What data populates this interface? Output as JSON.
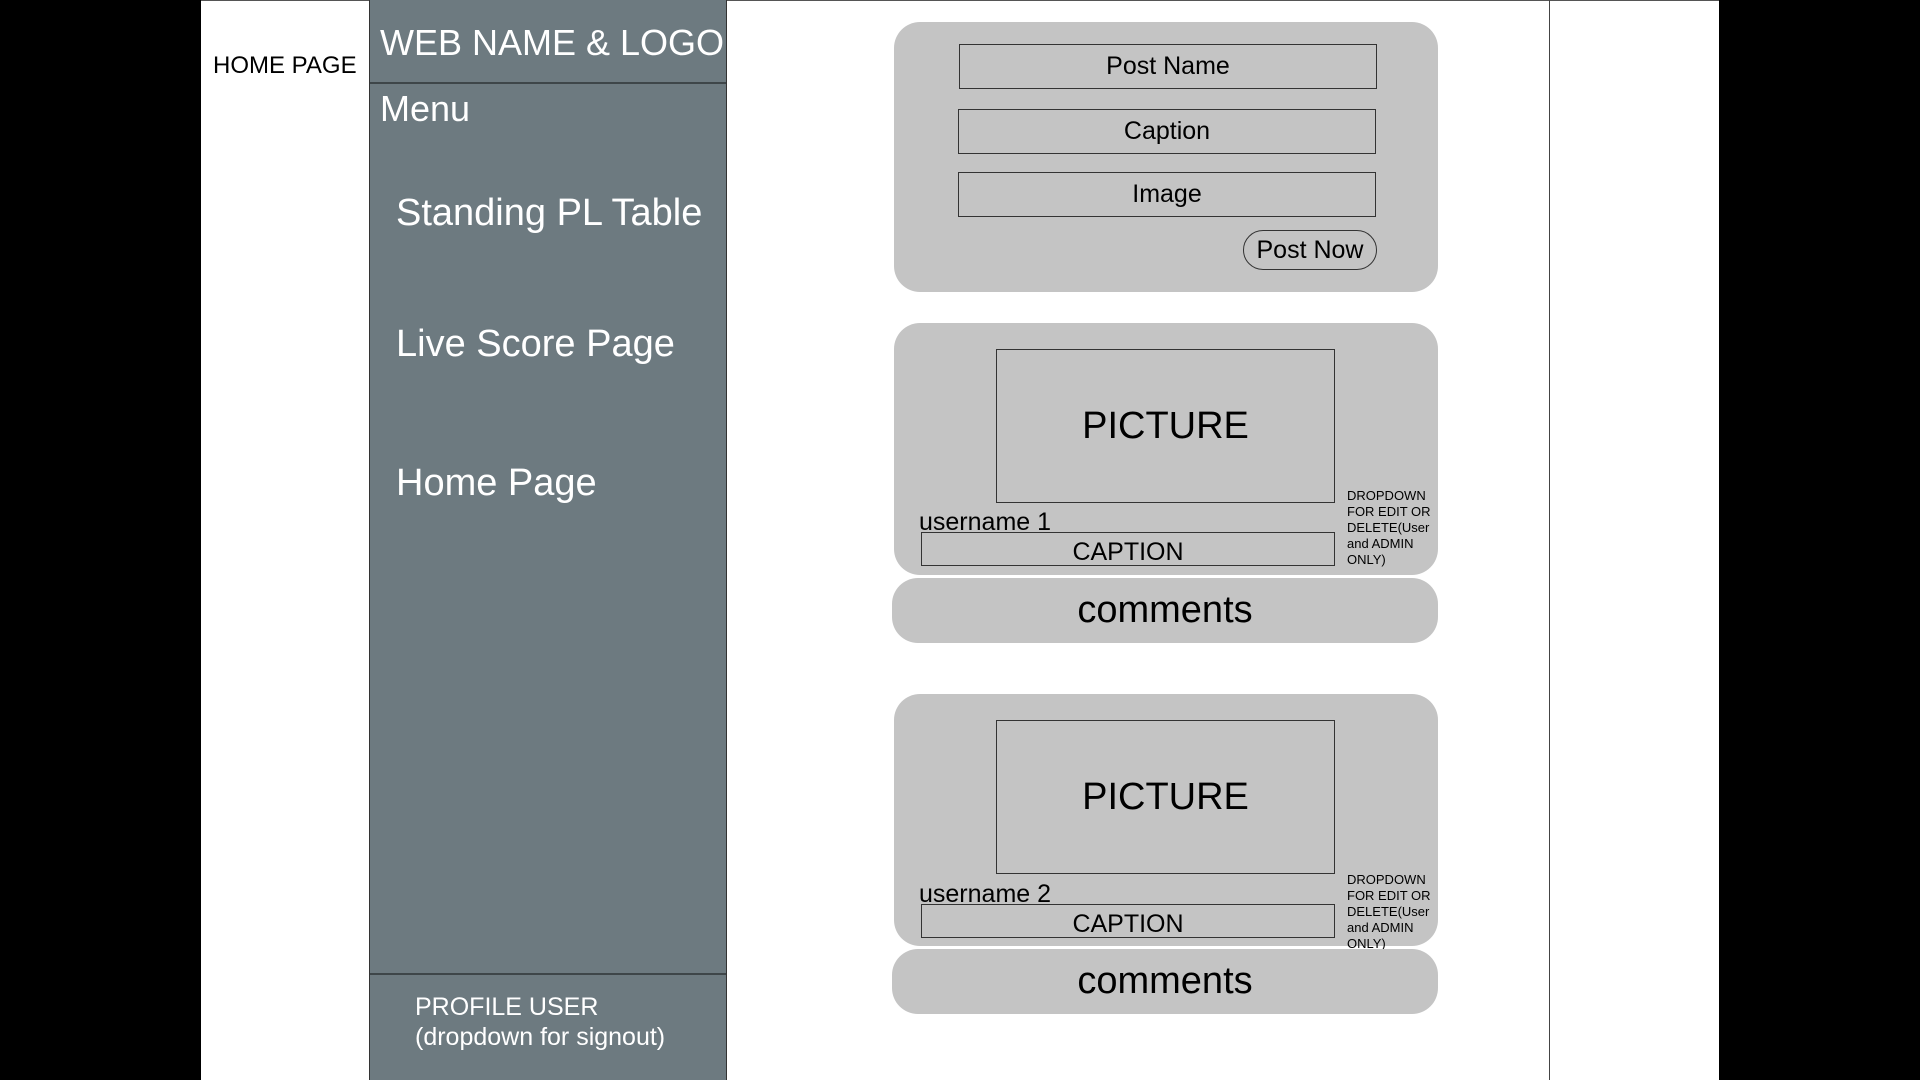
{
  "page": {
    "label": "HOME PAGE"
  },
  "sidebar": {
    "brand": "WEB NAME & LOGO",
    "menu_title": "Menu",
    "items": [
      {
        "label": "Standing PL Table"
      },
      {
        "label": "Live Score Page"
      },
      {
        "label": "Home Page"
      }
    ],
    "profile": {
      "line1": "PROFILE USER",
      "line2": "(dropdown for signout)"
    }
  },
  "composer": {
    "post_name_placeholder": "Post Name",
    "caption_placeholder": "Caption",
    "image_placeholder": "Image",
    "post_button": "Post Now"
  },
  "posts": [
    {
      "picture": "PICTURE",
      "username": "username 1",
      "caption": "CAPTION",
      "dropdown_note": "DROPDOWN FOR EDIT OR DELETE(User and ADMIN ONLY)",
      "comments": "comments"
    },
    {
      "picture": "PICTURE",
      "username": "username 2",
      "caption": "CAPTION",
      "dropdown_note": "DROPDOWN FOR EDIT OR DELETE(User and ADMIN ONLY)",
      "comments": "comments"
    }
  ],
  "colors": {
    "sidebar_bg": "#6d7a80",
    "card_bg": "#c4c4c4",
    "page_bg": "#ffffff",
    "outer_bg": "#000000"
  }
}
